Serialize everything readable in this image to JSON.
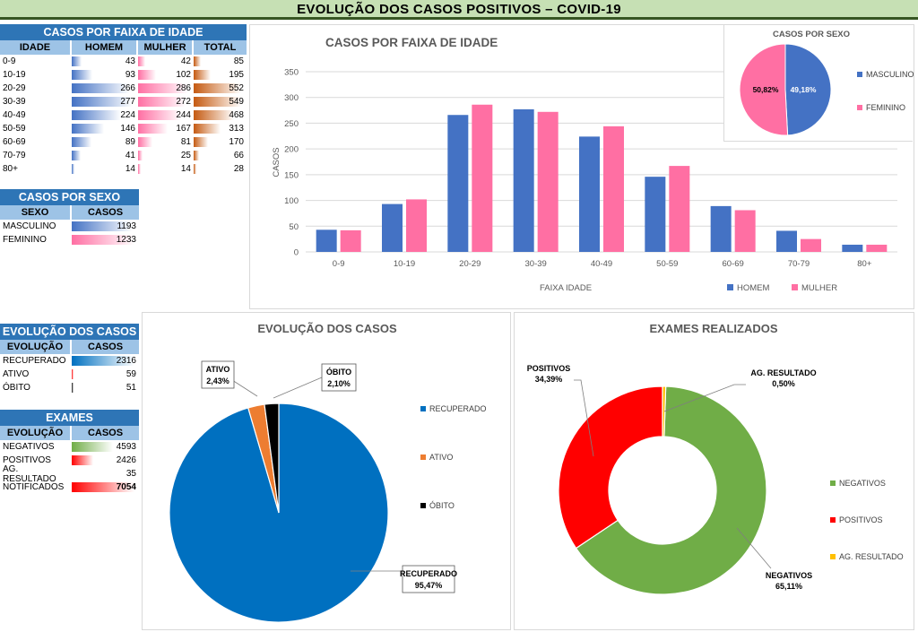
{
  "header": {
    "title": "EVOLUÇÃO DOS  CASOS POSITIVOS – COVID-19"
  },
  "age_table": {
    "title": "CASOS POR FAIXA DE IDADE",
    "columns": [
      "IDADE",
      "HOMEM",
      "MULHER",
      "TOTAL"
    ],
    "rows": [
      {
        "age": "0-9",
        "homem": 43,
        "mulher": 42,
        "total": 85
      },
      {
        "age": "10-19",
        "homem": 93,
        "mulher": 102,
        "total": 195
      },
      {
        "age": "20-29",
        "homem": 266,
        "mulher": 286,
        "total": 552
      },
      {
        "age": "30-39",
        "homem": 277,
        "mulher": 272,
        "total": 549
      },
      {
        "age": "40-49",
        "homem": 224,
        "mulher": 244,
        "total": 468
      },
      {
        "age": "50-59",
        "homem": 146,
        "mulher": 167,
        "total": 313
      },
      {
        "age": "60-69",
        "homem": 89,
        "mulher": 81,
        "total": 170
      },
      {
        "age": "70-79",
        "homem": 41,
        "mulher": 25,
        "total": 66
      },
      {
        "age": "80+",
        "homem": 14,
        "mulher": 14,
        "total": 28
      }
    ]
  },
  "sex_table": {
    "title": "CASOS POR SEXO",
    "columns": [
      "SEXO",
      "CASOS"
    ],
    "rows": [
      {
        "label": "MASCULINO",
        "value": 1193
      },
      {
        "label": "FEMININO",
        "value": 1233
      }
    ]
  },
  "evolution_table": {
    "title": "EVOLUÇÃO DOS CASOS",
    "columns": [
      "EVOLUÇÃO",
      "CASOS"
    ],
    "rows": [
      {
        "label": "RECUPERADO",
        "value": 2316
      },
      {
        "label": "ATIVO",
        "value": 59
      },
      {
        "label": "ÓBITO",
        "value": 51
      }
    ]
  },
  "exams_table": {
    "title": "EXAMES",
    "columns": [
      "EVOLUÇÃO",
      "CASOS"
    ],
    "rows": [
      {
        "label": "NEGATIVOS",
        "value": 4593
      },
      {
        "label": "POSITIVOS",
        "value": 2426
      },
      {
        "label": "AG. RESULTADO",
        "value": 35
      },
      {
        "label": "NOTIFICADOS",
        "value": 7054
      }
    ]
  },
  "colors": {
    "homem": "#4472c4",
    "mulher": "#ff6fa3",
    "total": "#c55a11",
    "recuperado": "#0070c0",
    "ativo": "#ed7d31",
    "obito": "#000000",
    "negativos": "#70ad47",
    "positivos": "#ff0000",
    "ag_resultado": "#ffc000",
    "table_header": "#2e75b6",
    "table_subheader": "#9dc3e6"
  },
  "chart_data": [
    {
      "type": "bar",
      "title": "CASOS POR FAIXA DE IDADE",
      "xlabel": "FAIXA IDADE",
      "ylabel": "CASOS",
      "ylim": [
        0,
        350
      ],
      "yticks": [
        "0",
        "50",
        "100",
        "150",
        "200",
        "250",
        "300",
        "350"
      ],
      "categories": [
        "0-9",
        "10-19",
        "20-29",
        "30-39",
        "40-49",
        "50-59",
        "60-69",
        "70-79",
        "80+"
      ],
      "series": [
        {
          "name": "HOMEM",
          "values": [
            43,
            93,
            266,
            277,
            224,
            146,
            89,
            41,
            14
          ]
        },
        {
          "name": "MULHER",
          "values": [
            42,
            102,
            286,
            272,
            244,
            167,
            81,
            25,
            14
          ]
        }
      ],
      "grid": true,
      "legend": "bottom-right"
    },
    {
      "type": "pie",
      "title": "CASOS POR SEXO",
      "labels": [
        "MASCULINO",
        "FEMININO"
      ],
      "values": [
        49.18,
        50.82
      ],
      "data_labels": [
        "49,18%",
        "50,82%"
      ],
      "legend": "right"
    },
    {
      "type": "pie",
      "title": "EVOLUÇÃO DOS CASOS",
      "labels": [
        "RECUPERADO",
        "ATIVO",
        "ÓBITO"
      ],
      "values": [
        95.47,
        2.43,
        2.1
      ],
      "data_labels": [
        "95,47%",
        "2,43%",
        "2,10%"
      ],
      "legend": "right"
    },
    {
      "type": "pie",
      "title": "EXAMES REALIZADOS",
      "labels": [
        "NEGATIVOS",
        "POSITIVOS",
        "AG. RESULTADO"
      ],
      "values": [
        65.11,
        34.39,
        0.5
      ],
      "data_labels": [
        "65,11%",
        "34,39%",
        "0,50%"
      ],
      "legend": "right",
      "donut": true
    }
  ]
}
